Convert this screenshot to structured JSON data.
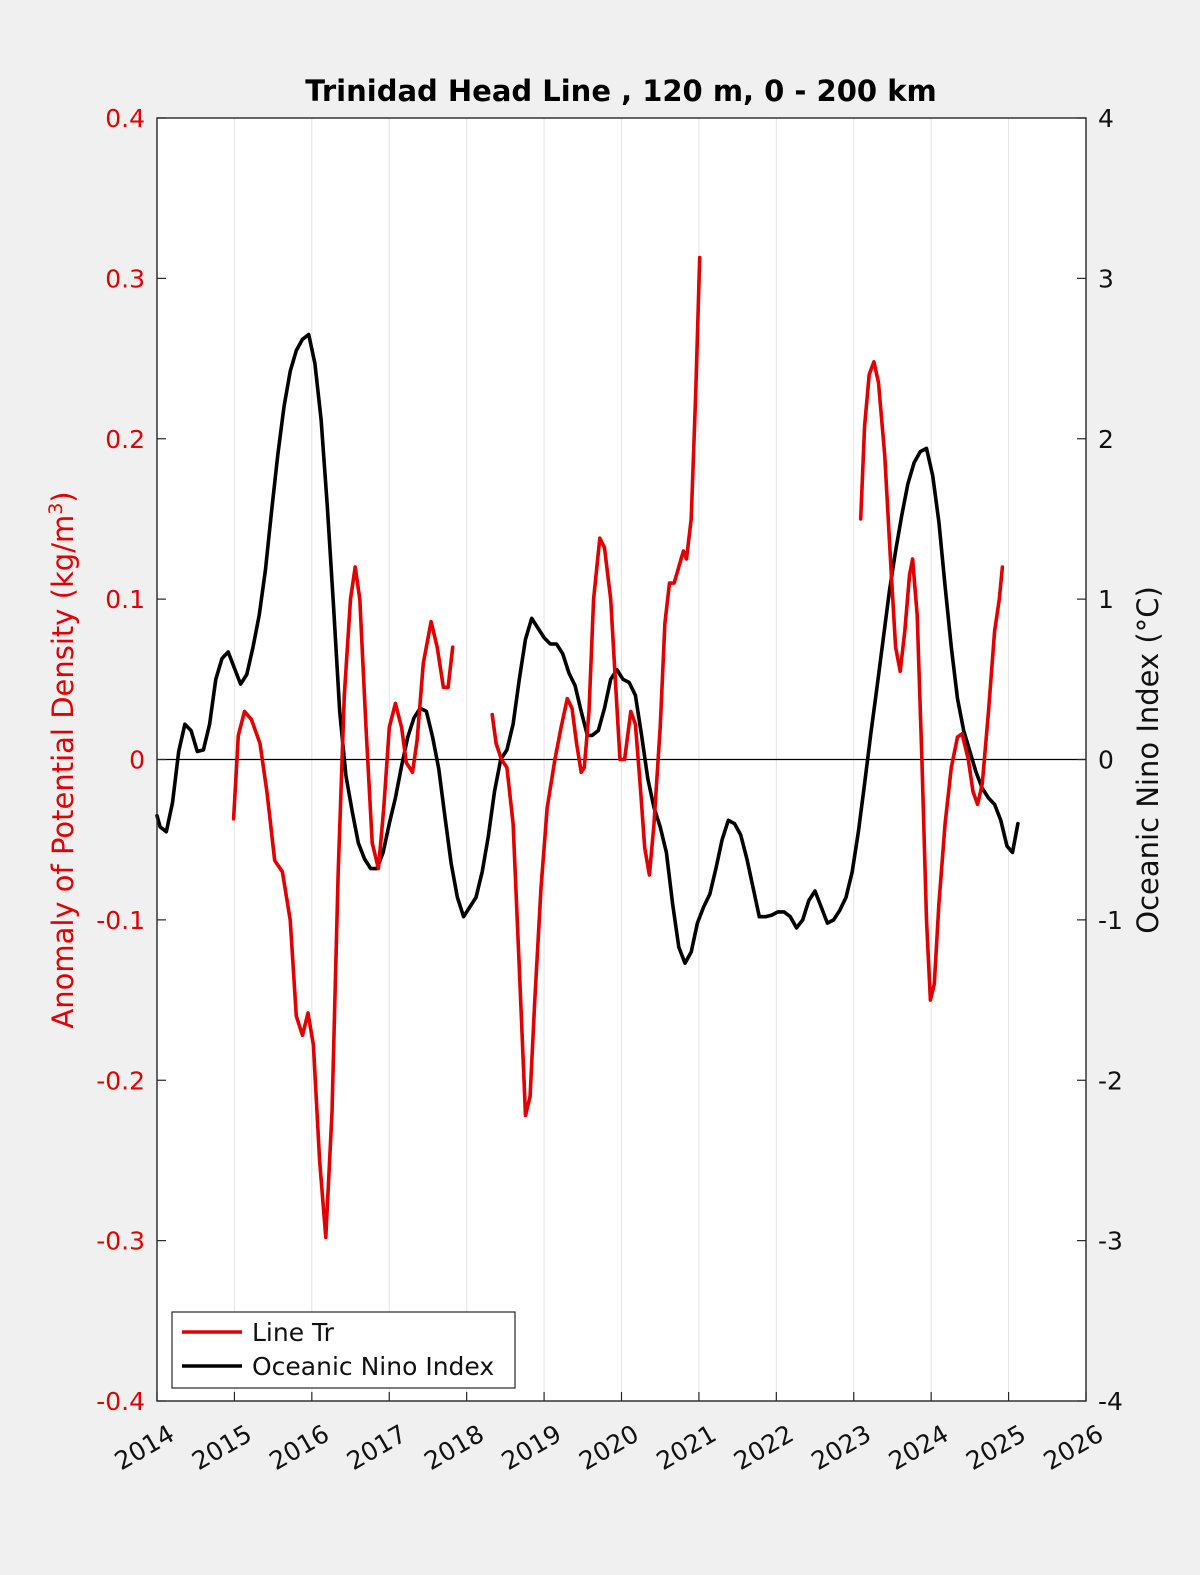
{
  "chart_data": {
    "type": "line",
    "title": "Trinidad Head Line , 120 m, 0 - 200 km",
    "xlabel": "",
    "ylabel_left_prefix": "Anomaly of Potential Density (kg/m",
    "ylabel_left_sup": "3",
    "ylabel_left_suffix": ")",
    "ylabel_right": "Oceanic Nino Index (°C)",
    "xlim": [
      2014,
      2026
    ],
    "ylim_left": [
      -0.4,
      0.4
    ],
    "ylim_right": [
      -4,
      4
    ],
    "x_ticks": [
      "2014",
      "2015",
      "2016",
      "2017",
      "2018",
      "2019",
      "2020",
      "2021",
      "2022",
      "2023",
      "2024",
      "2025",
      "2026"
    ],
    "y_ticks_left": [
      "-0.4",
      "-0.3",
      "-0.2",
      "-0.1",
      "0",
      "0.1",
      "0.2",
      "0.3",
      "0.4"
    ],
    "y_ticks_right": [
      "-4",
      "-3",
      "-2",
      "-1",
      "0",
      "1",
      "2",
      "3",
      "4"
    ],
    "grid": "vertical",
    "legend_position": "bottom-left",
    "legend": [
      {
        "label": "Line Tr",
        "color": "#e00000"
      },
      {
        "label": "Oceanic Nino Index",
        "color": "#000000"
      }
    ],
    "series": [
      {
        "name": "Line Tr",
        "axis": "left",
        "color": "#e00000",
        "segments": [
          [
            [
              2014.99,
              -0.037
            ],
            [
              2015.05,
              0.015
            ],
            [
              2015.13,
              0.03
            ],
            [
              2015.22,
              0.025
            ],
            [
              2015.33,
              0.01
            ],
            [
              2015.42,
              -0.02
            ],
            [
              2015.52,
              -0.063
            ],
            [
              2015.62,
              -0.07
            ],
            [
              2015.72,
              -0.1
            ],
            [
              2015.8,
              -0.16
            ],
            [
              2015.88,
              -0.172
            ],
            [
              2015.95,
              -0.158
            ],
            [
              2016.02,
              -0.178
            ],
            [
              2016.1,
              -0.25
            ],
            [
              2016.18,
              -0.298
            ],
            [
              2016.26,
              -0.22
            ],
            [
              2016.34,
              -0.07
            ],
            [
              2016.42,
              0.04
            ],
            [
              2016.5,
              0.1
            ],
            [
              2016.56,
              0.12
            ],
            [
              2016.62,
              0.1
            ],
            [
              2016.7,
              0.02
            ],
            [
              2016.78,
              -0.052
            ],
            [
              2016.86,
              -0.068
            ],
            [
              2016.93,
              -0.03
            ],
            [
              2017.0,
              0.02
            ],
            [
              2017.08,
              0.035
            ],
            [
              2017.16,
              0.02
            ],
            [
              2017.22,
              -0.002
            ],
            [
              2017.3,
              -0.008
            ],
            [
              2017.36,
              0.012
            ],
            [
              2017.44,
              0.06
            ],
            [
              2017.54,
              0.086
            ],
            [
              2017.62,
              0.07
            ],
            [
              2017.7,
              0.045
            ],
            [
              2017.76,
              0.045
            ],
            [
              2017.82,
              0.07
            ]
          ],
          [
            [
              2018.33,
              0.028
            ],
            [
              2018.38,
              0.01
            ],
            [
              2018.45,
              0.0
            ],
            [
              2018.52,
              -0.005
            ],
            [
              2018.6,
              -0.04
            ],
            [
              2018.68,
              -0.13
            ],
            [
              2018.76,
              -0.222
            ],
            [
              2018.82,
              -0.21
            ],
            [
              2018.88,
              -0.15
            ],
            [
              2018.96,
              -0.08
            ],
            [
              2019.04,
              -0.03
            ],
            [
              2019.14,
              0.0
            ],
            [
              2019.22,
              0.02
            ],
            [
              2019.3,
              0.038
            ],
            [
              2019.36,
              0.032
            ],
            [
              2019.42,
              0.01
            ],
            [
              2019.48,
              -0.008
            ],
            [
              2019.52,
              -0.005
            ],
            [
              2019.58,
              0.03
            ],
            [
              2019.64,
              0.1
            ],
            [
              2019.72,
              0.138
            ],
            [
              2019.78,
              0.132
            ],
            [
              2019.86,
              0.1
            ],
            [
              2019.92,
              0.05
            ],
            [
              2019.98,
              0.0
            ],
            [
              2020.04,
              0.0
            ],
            [
              2020.12,
              0.03
            ],
            [
              2020.18,
              0.022
            ],
            [
              2020.24,
              -0.015
            ],
            [
              2020.3,
              -0.055
            ],
            [
              2020.36,
              -0.072
            ],
            [
              2020.42,
              -0.04
            ],
            [
              2020.5,
              0.02
            ],
            [
              2020.56,
              0.085
            ],
            [
              2020.62,
              0.11
            ],
            [
              2020.68,
              0.11
            ],
            [
              2020.74,
              0.12
            ],
            [
              2020.8,
              0.13
            ],
            [
              2020.84,
              0.125
            ],
            [
              2020.9,
              0.15
            ],
            [
              2020.96,
              0.23
            ],
            [
              2021.01,
              0.313
            ]
          ],
          [
            [
              2023.09,
              0.15
            ],
            [
              2023.14,
              0.208
            ],
            [
              2023.2,
              0.24
            ],
            [
              2023.26,
              0.248
            ],
            [
              2023.32,
              0.235
            ],
            [
              2023.4,
              0.19
            ],
            [
              2023.48,
              0.12
            ],
            [
              2023.54,
              0.07
            ],
            [
              2023.6,
              0.055
            ],
            [
              2023.66,
              0.08
            ],
            [
              2023.72,
              0.115
            ],
            [
              2023.76,
              0.125
            ],
            [
              2023.82,
              0.09
            ],
            [
              2023.88,
              0.0
            ],
            [
              2023.94,
              -0.1
            ],
            [
              2023.99,
              -0.15
            ],
            [
              2024.04,
              -0.14
            ],
            [
              2024.1,
              -0.09
            ],
            [
              2024.18,
              -0.04
            ],
            [
              2024.26,
              -0.005
            ],
            [
              2024.34,
              0.014
            ],
            [
              2024.4,
              0.016
            ],
            [
              2024.48,
              0.0
            ],
            [
              2024.54,
              -0.02
            ],
            [
              2024.6,
              -0.028
            ],
            [
              2024.66,
              -0.015
            ],
            [
              2024.74,
              0.03
            ],
            [
              2024.82,
              0.08
            ],
            [
              2024.88,
              0.1
            ],
            [
              2024.92,
              0.12
            ]
          ]
        ]
      },
      {
        "name": "Oceanic Nino Index",
        "axis": "right",
        "color": "#000000",
        "segments": [
          [
            [
              2014.0,
              -0.35
            ],
            [
              2014.04,
              -0.42
            ],
            [
              2014.12,
              -0.45
            ],
            [
              2014.2,
              -0.27
            ],
            [
              2014.28,
              0.05
            ],
            [
              2014.36,
              0.22
            ],
            [
              2014.44,
              0.18
            ],
            [
              2014.52,
              0.05
            ],
            [
              2014.6,
              0.06
            ],
            [
              2014.68,
              0.22
            ],
            [
              2014.76,
              0.5
            ],
            [
              2014.84,
              0.63
            ],
            [
              2014.92,
              0.67
            ],
            [
              2015.0,
              0.57
            ],
            [
              2015.08,
              0.47
            ],
            [
              2015.16,
              0.53
            ],
            [
              2015.24,
              0.7
            ],
            [
              2015.32,
              0.9
            ],
            [
              2015.4,
              1.18
            ],
            [
              2015.48,
              1.55
            ],
            [
              2015.56,
              1.9
            ],
            [
              2015.64,
              2.2
            ],
            [
              2015.72,
              2.42
            ],
            [
              2015.8,
              2.55
            ],
            [
              2015.88,
              2.62
            ],
            [
              2015.96,
              2.65
            ],
            [
              2016.04,
              2.47
            ],
            [
              2016.12,
              2.12
            ],
            [
              2016.2,
              1.58
            ],
            [
              2016.28,
              0.96
            ],
            [
              2016.36,
              0.3
            ],
            [
              2016.44,
              -0.1
            ],
            [
              2016.52,
              -0.32
            ],
            [
              2016.6,
              -0.52
            ],
            [
              2016.68,
              -0.62
            ],
            [
              2016.76,
              -0.68
            ],
            [
              2016.84,
              -0.68
            ],
            [
              2016.92,
              -0.58
            ],
            [
              2017.0,
              -0.4
            ],
            [
              2017.08,
              -0.24
            ],
            [
              2017.16,
              -0.04
            ],
            [
              2017.24,
              0.14
            ],
            [
              2017.32,
              0.26
            ],
            [
              2017.4,
              0.32
            ],
            [
              2017.48,
              0.3
            ],
            [
              2017.56,
              0.14
            ],
            [
              2017.64,
              -0.06
            ],
            [
              2017.72,
              -0.36
            ],
            [
              2017.8,
              -0.65
            ],
            [
              2017.88,
              -0.86
            ],
            [
              2017.96,
              -0.98
            ],
            [
              2018.04,
              -0.92
            ],
            [
              2018.12,
              -0.86
            ],
            [
              2018.2,
              -0.7
            ],
            [
              2018.28,
              -0.48
            ],
            [
              2018.36,
              -0.2
            ],
            [
              2018.44,
              0.0
            ],
            [
              2018.52,
              0.06
            ],
            [
              2018.6,
              0.22
            ],
            [
              2018.68,
              0.5
            ],
            [
              2018.76,
              0.75
            ],
            [
              2018.84,
              0.88
            ],
            [
              2018.92,
              0.82
            ],
            [
              2019.0,
              0.76
            ],
            [
              2019.08,
              0.72
            ],
            [
              2019.16,
              0.72
            ],
            [
              2019.24,
              0.66
            ],
            [
              2019.32,
              0.54
            ],
            [
              2019.4,
              0.46
            ],
            [
              2019.48,
              0.3
            ],
            [
              2019.56,
              0.15
            ],
            [
              2019.62,
              0.15
            ],
            [
              2019.7,
              0.18
            ],
            [
              2019.78,
              0.32
            ],
            [
              2019.86,
              0.5
            ],
            [
              2019.94,
              0.56
            ],
            [
              2020.02,
              0.5
            ],
            [
              2020.1,
              0.48
            ],
            [
              2020.18,
              0.4
            ],
            [
              2020.26,
              0.15
            ],
            [
              2020.34,
              -0.12
            ],
            [
              2020.42,
              -0.3
            ],
            [
              2020.5,
              -0.42
            ],
            [
              2020.58,
              -0.58
            ],
            [
              2020.66,
              -0.9
            ],
            [
              2020.74,
              -1.17
            ],
            [
              2020.82,
              -1.27
            ],
            [
              2020.9,
              -1.2
            ],
            [
              2020.98,
              -1.02
            ],
            [
              2021.06,
              -0.92
            ],
            [
              2021.14,
              -0.84
            ],
            [
              2021.22,
              -0.68
            ],
            [
              2021.3,
              -0.5
            ],
            [
              2021.38,
              -0.38
            ],
            [
              2021.46,
              -0.4
            ],
            [
              2021.54,
              -0.47
            ],
            [
              2021.62,
              -0.62
            ],
            [
              2021.7,
              -0.8
            ],
            [
              2021.78,
              -0.98
            ],
            [
              2021.86,
              -0.98
            ],
            [
              2021.94,
              -0.97
            ],
            [
              2022.02,
              -0.95
            ],
            [
              2022.1,
              -0.95
            ],
            [
              2022.18,
              -0.98
            ],
            [
              2022.26,
              -1.05
            ],
            [
              2022.34,
              -1.0
            ],
            [
              2022.42,
              -0.88
            ],
            [
              2022.5,
              -0.82
            ],
            [
              2022.58,
              -0.92
            ],
            [
              2022.66,
              -1.02
            ],
            [
              2022.74,
              -1.0
            ],
            [
              2022.82,
              -0.94
            ],
            [
              2022.9,
              -0.86
            ],
            [
              2022.98,
              -0.7
            ],
            [
              2023.06,
              -0.45
            ],
            [
              2023.14,
              -0.15
            ],
            [
              2023.22,
              0.16
            ],
            [
              2023.3,
              0.45
            ],
            [
              2023.38,
              0.75
            ],
            [
              2023.46,
              1.05
            ],
            [
              2023.54,
              1.3
            ],
            [
              2023.62,
              1.52
            ],
            [
              2023.7,
              1.72
            ],
            [
              2023.78,
              1.85
            ],
            [
              2023.86,
              1.92
            ],
            [
              2023.94,
              1.94
            ],
            [
              2024.02,
              1.77
            ],
            [
              2024.1,
              1.48
            ],
            [
              2024.18,
              1.08
            ],
            [
              2024.26,
              0.7
            ],
            [
              2024.34,
              0.38
            ],
            [
              2024.42,
              0.18
            ],
            [
              2024.5,
              0.05
            ],
            [
              2024.58,
              -0.08
            ],
            [
              2024.66,
              -0.18
            ],
            [
              2024.74,
              -0.24
            ],
            [
              2024.82,
              -0.28
            ],
            [
              2024.9,
              -0.38
            ],
            [
              2024.98,
              -0.54
            ],
            [
              2025.05,
              -0.58
            ],
            [
              2025.12,
              -0.4
            ]
          ]
        ]
      }
    ]
  }
}
